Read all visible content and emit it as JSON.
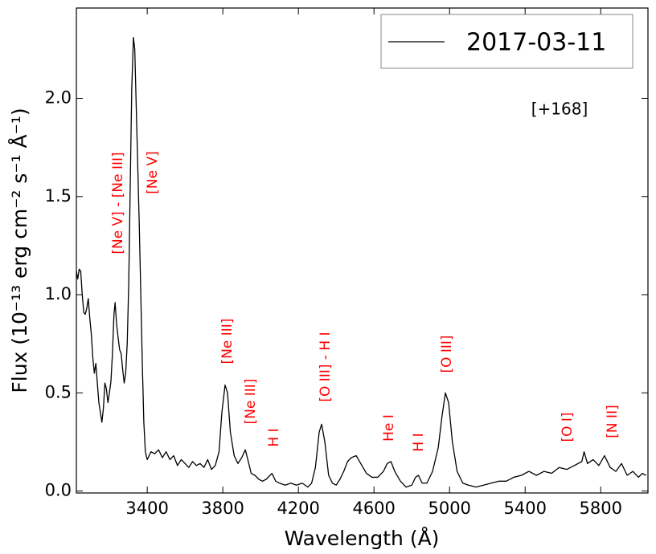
{
  "chart_data": {
    "type": "line",
    "xlabel": "Wavelength (Å)",
    "ylabel": "Flux (10⁻¹³ erg cm⁻² s⁻¹ Å⁻¹)",
    "annotations": [
      "[Ne V] - [Ne III]",
      "[Ne V]",
      "[Ne III]",
      "[Ne III]",
      "H I",
      "[O III] - H I",
      "He I",
      "H I",
      "[O III]",
      "[O I]",
      "[N II]"
    ],
    "epoch_label": "[+168]",
    "legend": "upper right",
    "xlim": [
      3025,
      6050
    ],
    "ylim": [
      -0.01,
      2.46
    ],
    "xticks": [
      3400,
      3800,
      4200,
      4600,
      5000,
      5400,
      5800
    ],
    "yticks": [
      {
        "value": 0,
        "label": "0.0"
      },
      0.5,
      {
        "value": 1,
        "label": "1.0"
      },
      1.5,
      {
        "value": 2,
        "label": "2.0"
      }
    ],
    "x": [
      3025,
      3032,
      3040,
      3048,
      3056,
      3064,
      3072,
      3080,
      3088,
      3096,
      3104,
      3112,
      3120,
      3128,
      3136,
      3144,
      3152,
      3160,
      3168,
      3176,
      3184,
      3192,
      3200,
      3208,
      3216,
      3224,
      3230,
      3238,
      3246,
      3254,
      3262,
      3270,
      3278,
      3286,
      3294,
      3302,
      3310,
      3318,
      3327,
      3334,
      3342,
      3350,
      3358,
      3366,
      3374,
      3382,
      3390,
      3400,
      3420,
      3440,
      3460,
      3480,
      3500,
      3520,
      3540,
      3560,
      3580,
      3600,
      3620,
      3640,
      3660,
      3680,
      3700,
      3720,
      3740,
      3760,
      3780,
      3795,
      3812,
      3825,
      3840,
      3860,
      3880,
      3900,
      3919,
      3935,
      3950,
      3970,
      3990,
      4010,
      4030,
      4060,
      4080,
      4100,
      4130,
      4160,
      4190,
      4220,
      4250,
      4270,
      4290,
      4310,
      4323,
      4340,
      4360,
      4380,
      4400,
      4420,
      4440,
      4460,
      4480,
      4506,
      4530,
      4560,
      4590,
      4620,
      4650,
      4670,
      4690,
      4710,
      4740,
      4770,
      4800,
      4820,
      4835,
      4855,
      4880,
      4910,
      4940,
      4960,
      4978,
      4995,
      5015,
      5040,
      5070,
      5100,
      5140,
      5180,
      5220,
      5260,
      5300,
      5340,
      5380,
      5420,
      5460,
      5500,
      5540,
      5580,
      5620,
      5660,
      5700,
      5712,
      5730,
      5760,
      5790,
      5820,
      5850,
      5880,
      5910,
      5940,
      5970,
      6000,
      6020,
      6040
    ],
    "series": [
      {
        "name": "2017-03-11",
        "color": "#000000",
        "values": [
          1.12,
          1.08,
          1.13,
          1.12,
          1.0,
          0.91,
          0.9,
          0.93,
          0.98,
          0.88,
          0.8,
          0.68,
          0.6,
          0.65,
          0.55,
          0.45,
          0.4,
          0.35,
          0.42,
          0.55,
          0.52,
          0.45,
          0.5,
          0.56,
          0.7,
          0.9,
          0.96,
          0.85,
          0.78,
          0.72,
          0.7,
          0.62,
          0.55,
          0.6,
          0.75,
          1.05,
          1.55,
          2.05,
          2.31,
          2.25,
          1.95,
          1.65,
          1.35,
          1.0,
          0.65,
          0.35,
          0.2,
          0.16,
          0.2,
          0.19,
          0.21,
          0.17,
          0.2,
          0.16,
          0.18,
          0.13,
          0.16,
          0.14,
          0.12,
          0.15,
          0.13,
          0.14,
          0.12,
          0.16,
          0.11,
          0.13,
          0.2,
          0.4,
          0.54,
          0.5,
          0.3,
          0.18,
          0.14,
          0.17,
          0.21,
          0.15,
          0.09,
          0.08,
          0.06,
          0.05,
          0.06,
          0.09,
          0.05,
          0.04,
          0.03,
          0.04,
          0.03,
          0.04,
          0.02,
          0.04,
          0.12,
          0.3,
          0.34,
          0.25,
          0.08,
          0.04,
          0.03,
          0.06,
          0.1,
          0.15,
          0.17,
          0.18,
          0.14,
          0.09,
          0.07,
          0.07,
          0.1,
          0.14,
          0.15,
          0.1,
          0.05,
          0.02,
          0.03,
          0.07,
          0.08,
          0.04,
          0.04,
          0.1,
          0.22,
          0.38,
          0.5,
          0.45,
          0.25,
          0.1,
          0.04,
          0.03,
          0.02,
          0.03,
          0.04,
          0.05,
          0.05,
          0.07,
          0.08,
          0.1,
          0.08,
          0.1,
          0.09,
          0.12,
          0.11,
          0.13,
          0.15,
          0.2,
          0.14,
          0.16,
          0.13,
          0.18,
          0.12,
          0.1,
          0.14,
          0.08,
          0.1,
          0.07,
          0.09,
          0.08
        ]
      }
    ]
  }
}
